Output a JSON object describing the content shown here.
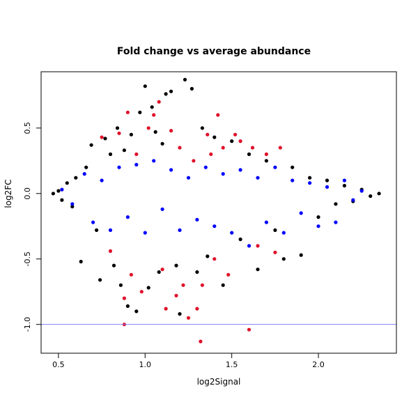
{
  "chart_data": {
    "type": "scatter",
    "title": "Fold change vs average abundance",
    "xlabel": "log2Signal",
    "ylabel": "log2FC",
    "xlim": [
      0.4,
      2.45
    ],
    "ylim": [
      -1.22,
      0.93
    ],
    "x_ticks": [
      0.5,
      1.0,
      1.5,
      2.0
    ],
    "x_tick_labels": [
      "0.5",
      "1.0",
      "1.5",
      "2.0"
    ],
    "y_ticks": [
      -1.0,
      -0.5,
      0.0,
      0.5
    ],
    "y_tick_labels": [
      "-1.0",
      "-0.5",
      "0.0",
      "0.5"
    ],
    "grid": false,
    "reference_line": {
      "axis": "y",
      "value": -1.0,
      "color": "#8080ff"
    },
    "series": [
      {
        "color": "#000000",
        "points": [
          [
            0.47,
            0.0
          ],
          [
            0.5,
            0.02
          ],
          [
            0.52,
            -0.05
          ],
          [
            0.55,
            0.08
          ],
          [
            0.58,
            -0.1
          ],
          [
            0.6,
            0.12
          ],
          [
            0.63,
            -0.52
          ],
          [
            0.66,
            0.2
          ],
          [
            0.69,
            0.37
          ],
          [
            0.72,
            -0.28
          ],
          [
            0.74,
            -0.66
          ],
          [
            0.77,
            0.42
          ],
          [
            0.8,
            0.3
          ],
          [
            0.82,
            -0.55
          ],
          [
            0.84,
            0.5
          ],
          [
            0.86,
            -0.7
          ],
          [
            0.88,
            0.33
          ],
          [
            0.9,
            -0.86
          ],
          [
            0.92,
            0.45
          ],
          [
            0.95,
            -0.9
          ],
          [
            0.97,
            0.62
          ],
          [
            1.0,
            0.82
          ],
          [
            1.02,
            -0.72
          ],
          [
            1.04,
            0.66
          ],
          [
            1.06,
            0.47
          ],
          [
            1.08,
            -0.6
          ],
          [
            1.1,
            0.38
          ],
          [
            1.12,
            0.76
          ],
          [
            1.15,
            0.78
          ],
          [
            1.18,
            -0.55
          ],
          [
            1.2,
            -0.92
          ],
          [
            1.23,
            0.87
          ],
          [
            1.27,
            0.8
          ],
          [
            1.3,
            -0.6
          ],
          [
            1.33,
            0.5
          ],
          [
            1.36,
            -0.48
          ],
          [
            1.4,
            0.43
          ],
          [
            1.45,
            -0.7
          ],
          [
            1.5,
            0.4
          ],
          [
            1.55,
            -0.35
          ],
          [
            1.6,
            0.3
          ],
          [
            1.65,
            -0.58
          ],
          [
            1.7,
            0.25
          ],
          [
            1.75,
            -0.28
          ],
          [
            1.8,
            -0.5
          ],
          [
            1.85,
            0.2
          ],
          [
            1.9,
            -0.47
          ],
          [
            1.95,
            0.12
          ],
          [
            2.0,
            -0.18
          ],
          [
            2.05,
            0.1
          ],
          [
            2.1,
            -0.08
          ],
          [
            2.15,
            0.06
          ],
          [
            2.2,
            -0.06
          ],
          [
            2.25,
            0.03
          ],
          [
            2.3,
            -0.02
          ],
          [
            2.35,
            0.0
          ]
        ]
      },
      {
        "color": "#0000ff",
        "points": [
          [
            0.52,
            0.03
          ],
          [
            0.58,
            -0.08
          ],
          [
            0.65,
            0.15
          ],
          [
            0.7,
            -0.22
          ],
          [
            0.75,
            0.1
          ],
          [
            0.8,
            -0.28
          ],
          [
            0.85,
            0.2
          ],
          [
            0.9,
            -0.18
          ],
          [
            0.95,
            0.22
          ],
          [
            1.0,
            -0.3
          ],
          [
            1.05,
            0.25
          ],
          [
            1.1,
            -0.12
          ],
          [
            1.15,
            0.18
          ],
          [
            1.2,
            -0.28
          ],
          [
            1.25,
            0.12
          ],
          [
            1.3,
            -0.2
          ],
          [
            1.35,
            0.2
          ],
          [
            1.4,
            -0.25
          ],
          [
            1.45,
            0.15
          ],
          [
            1.5,
            -0.3
          ],
          [
            1.55,
            0.18
          ],
          [
            1.6,
            -0.4
          ],
          [
            1.65,
            0.12
          ],
          [
            1.7,
            -0.22
          ],
          [
            1.75,
            0.2
          ],
          [
            1.8,
            -0.3
          ],
          [
            1.85,
            0.1
          ],
          [
            1.9,
            -0.15
          ],
          [
            1.95,
            0.08
          ],
          [
            2.0,
            -0.25
          ],
          [
            2.05,
            0.05
          ],
          [
            2.1,
            -0.22
          ],
          [
            2.15,
            0.1
          ],
          [
            2.2,
            -0.05
          ],
          [
            2.25,
            0.02
          ]
        ]
      },
      {
        "color": "#e0102a",
        "points": [
          [
            0.75,
            0.43
          ],
          [
            0.8,
            -0.44
          ],
          [
            0.85,
            0.46
          ],
          [
            0.88,
            -0.8
          ],
          [
            0.9,
            0.62
          ],
          [
            0.92,
            -0.62
          ],
          [
            0.95,
            0.3
          ],
          [
            0.98,
            -0.75
          ],
          [
            1.02,
            0.5
          ],
          [
            1.05,
            0.6
          ],
          [
            1.08,
            0.7
          ],
          [
            1.1,
            -0.58
          ],
          [
            1.12,
            -0.88
          ],
          [
            1.15,
            0.48
          ],
          [
            1.18,
            -0.78
          ],
          [
            1.2,
            0.35
          ],
          [
            1.22,
            -0.7
          ],
          [
            1.25,
            -0.95
          ],
          [
            1.28,
            0.25
          ],
          [
            1.3,
            -0.88
          ],
          [
            1.33,
            -0.7
          ],
          [
            1.36,
            0.45
          ],
          [
            1.38,
            0.3
          ],
          [
            1.4,
            -0.5
          ],
          [
            1.42,
            0.6
          ],
          [
            1.45,
            0.35
          ],
          [
            1.48,
            -0.62
          ],
          [
            1.52,
            0.45
          ],
          [
            1.55,
            0.4
          ],
          [
            1.6,
            -1.04
          ],
          [
            1.62,
            0.35
          ],
          [
            1.65,
            -0.4
          ],
          [
            1.7,
            0.3
          ],
          [
            1.75,
            -0.45
          ],
          [
            1.78,
            0.35
          ],
          [
            1.32,
            -1.13
          ],
          [
            0.88,
            -1.0
          ]
        ]
      }
    ]
  }
}
